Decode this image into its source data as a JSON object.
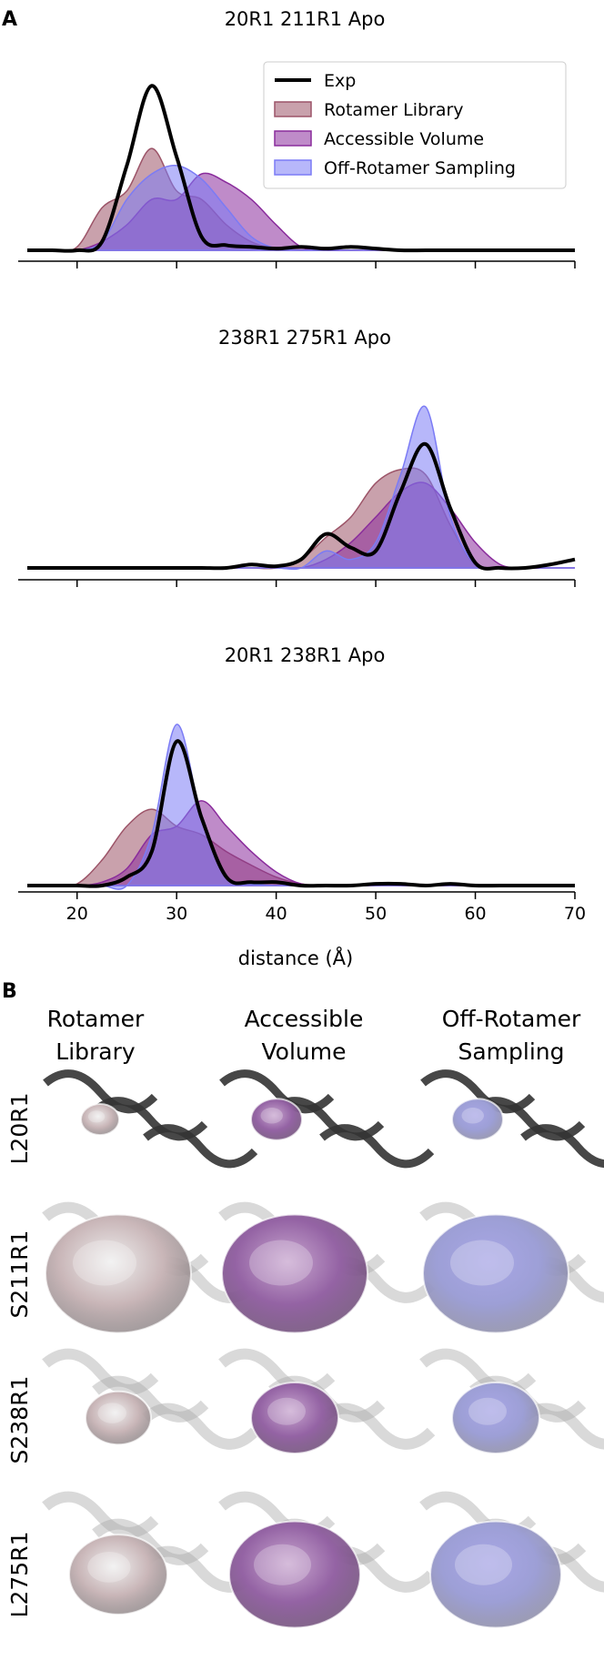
{
  "panel_a_label": "A",
  "chart_data": [
    {
      "type": "density",
      "title": "20R1 211R1 Apo",
      "xlim": [
        15,
        70
      ],
      "ylim": [
        0,
        1.1
      ],
      "xticks": [
        20,
        30,
        40,
        50,
        60,
        70
      ],
      "show_xtick_labels": false,
      "legend": "upper right",
      "x": [
        15,
        17.5,
        20,
        22.5,
        25,
        27.5,
        30,
        32.5,
        35,
        37.5,
        40,
        42.5,
        45,
        47.5,
        50,
        52.5,
        55,
        57.5,
        60,
        62.5,
        65,
        67.5,
        70
      ],
      "series": [
        {
          "name": "Exp",
          "color": "#000000",
          "fill": false,
          "values": [
            0,
            0,
            0,
            0.05,
            0.5,
            0.97,
            0.55,
            0.08,
            0.03,
            0.02,
            0.01,
            0.02,
            0.01,
            0.02,
            0.01,
            0,
            0,
            0,
            0,
            0,
            0,
            0,
            0
          ]
        },
        {
          "name": "Rotamer Library",
          "color": "#9c5468",
          "fill": true,
          "values": [
            0,
            0,
            0.02,
            0.25,
            0.35,
            0.6,
            0.35,
            0.3,
            0.15,
            0.05,
            0.01,
            0,
            0,
            0,
            0,
            0,
            0,
            0,
            0,
            0,
            0,
            0,
            0
          ]
        },
        {
          "name": "Accessible Volume",
          "color": "#8a2c9c",
          "fill": true,
          "values": [
            0,
            0,
            0,
            0.05,
            0.15,
            0.3,
            0.3,
            0.45,
            0.4,
            0.3,
            0.15,
            0.02,
            0,
            0,
            0,
            0,
            0,
            0,
            0,
            0,
            0,
            0,
            0
          ]
        },
        {
          "name": "Off-Rotamer Sampling",
          "color": "#7b7bf5",
          "fill": true,
          "values": [
            0,
            0,
            0,
            0.05,
            0.3,
            0.45,
            0.5,
            0.42,
            0.25,
            0.08,
            0.01,
            0,
            0,
            0,
            0,
            0,
            0,
            0,
            0,
            0,
            0,
            0,
            0
          ]
        }
      ]
    },
    {
      "type": "density",
      "title": "238R1 275R1 Apo",
      "xlim": [
        15,
        70
      ],
      "ylim": [
        0,
        1.1
      ],
      "xticks": [
        20,
        30,
        40,
        50,
        60,
        70
      ],
      "show_xtick_labels": false,
      "x": [
        15,
        17.5,
        20,
        22.5,
        25,
        27.5,
        30,
        32.5,
        35,
        37.5,
        40,
        42.5,
        45,
        47.5,
        50,
        52.5,
        55,
        57.5,
        60,
        62.5,
        65,
        67.5,
        70
      ],
      "series": [
        {
          "color": "#000000",
          "fill": false,
          "values": [
            0,
            0,
            0,
            0,
            0,
            0,
            0,
            0,
            0,
            0.02,
            0.01,
            0.05,
            0.2,
            0.12,
            0.1,
            0.45,
            0.73,
            0.35,
            0.03,
            0,
            0,
            0.02,
            0.05
          ]
        },
        {
          "color": "#9c5468",
          "fill": true,
          "values": [
            0,
            0,
            0,
            0,
            0,
            0,
            0,
            0,
            0,
            0,
            0,
            0.05,
            0.18,
            0.3,
            0.5,
            0.58,
            0.55,
            0.25,
            0.02,
            0,
            0,
            0,
            0
          ]
        },
        {
          "color": "#8a2c9c",
          "fill": true,
          "values": [
            0,
            0,
            0,
            0,
            0,
            0,
            0,
            0,
            0,
            0,
            0,
            0,
            0.05,
            0.15,
            0.3,
            0.45,
            0.5,
            0.35,
            0.15,
            0.02,
            0,
            0,
            0
          ]
        },
        {
          "color": "#7b7bf5",
          "fill": true,
          "values": [
            0,
            0,
            0,
            0,
            0,
            0,
            0,
            0,
            0,
            0,
            0,
            0,
            0.1,
            0.05,
            0.15,
            0.55,
            0.95,
            0.3,
            0.02,
            0,
            0,
            0,
            0
          ]
        }
      ]
    },
    {
      "type": "density",
      "title": "20R1 238R1 Apo",
      "xlim": [
        15,
        70
      ],
      "ylim": [
        0,
        1.1
      ],
      "xticks": [
        20,
        30,
        40,
        50,
        60,
        70
      ],
      "show_xtick_labels": true,
      "xlabel": "distance (Å)",
      "x": [
        15,
        17.5,
        20,
        22.5,
        25,
        27.5,
        30,
        32.5,
        35,
        37.5,
        40,
        42.5,
        45,
        47.5,
        50,
        52.5,
        55,
        57.5,
        60,
        62.5,
        65,
        67.5,
        70
      ],
      "series": [
        {
          "color": "#000000",
          "fill": false,
          "values": [
            0,
            0,
            0,
            0,
            0.05,
            0.2,
            0.85,
            0.4,
            0.05,
            0.02,
            0.02,
            0,
            0,
            0,
            0.01,
            0.01,
            0,
            0.01,
            0,
            0,
            0,
            0,
            0
          ]
        },
        {
          "color": "#9c5468",
          "fill": true,
          "values": [
            0,
            0,
            0.01,
            0.15,
            0.35,
            0.45,
            0.35,
            0.3,
            0.2,
            0.12,
            0.05,
            0.01,
            0,
            0,
            0,
            0,
            0,
            0,
            0,
            0,
            0,
            0,
            0
          ]
        },
        {
          "color": "#8a2c9c",
          "fill": true,
          "values": [
            0,
            0,
            0,
            0.02,
            0.1,
            0.3,
            0.35,
            0.5,
            0.35,
            0.2,
            0.08,
            0.01,
            0,
            0,
            0,
            0,
            0,
            0,
            0,
            0,
            0,
            0,
            0
          ]
        },
        {
          "color": "#7b7bf5",
          "fill": true,
          "values": [
            0,
            0,
            0,
            0,
            0,
            0.3,
            0.95,
            0.4,
            0.05,
            0.01,
            0,
            0,
            0,
            0,
            0,
            0,
            0,
            0,
            0,
            0,
            0,
            0,
            0
          ]
        }
      ]
    }
  ],
  "panel_b": {
    "label": "B",
    "columns": [
      [
        "Rotamer",
        "Library"
      ],
      [
        "Accessible",
        "Volume"
      ],
      [
        "Off-Rotamer",
        "Sampling"
      ]
    ],
    "rows": [
      "L20R1",
      "S211R1",
      "S238R1",
      "L275R1"
    ]
  }
}
